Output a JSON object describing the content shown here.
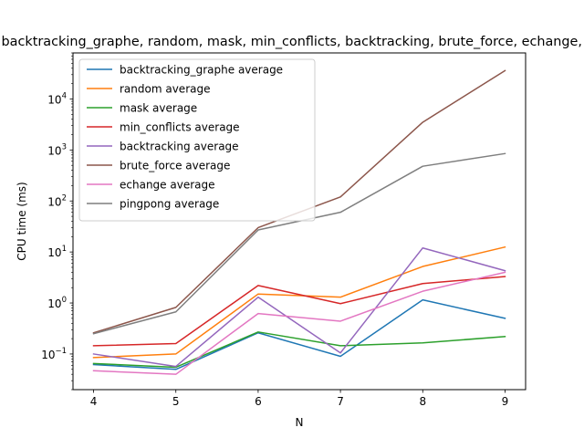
{
  "chart_data": {
    "type": "line",
    "title": "Timing of backtracking_graphe, random, mask, min_conflicts, backtracking, brute_force, echange, pingpong",
    "xlabel": "N",
    "ylabel": "CPU time (ms)",
    "yscale": "log",
    "x": [
      4,
      5,
      6,
      7,
      8,
      9
    ],
    "xlim": [
      3.75,
      9.25
    ],
    "ylim": [
      0.02,
      80000
    ],
    "x_ticks": [
      "4",
      "5",
      "6",
      "7",
      "8",
      "9"
    ],
    "y_ticks": [
      {
        "value": 0.1,
        "mantissa": "10",
        "exp": "−1"
      },
      {
        "value": 1,
        "mantissa": "10",
        "exp": "0"
      },
      {
        "value": 10,
        "mantissa": "10",
        "exp": "1"
      },
      {
        "value": 100,
        "mantissa": "10",
        "exp": "2"
      },
      {
        "value": 1000,
        "mantissa": "10",
        "exp": "3"
      },
      {
        "value": 10000,
        "mantissa": "10",
        "exp": "4"
      }
    ],
    "grid": false,
    "legend_position": "top-left",
    "series": [
      {
        "name": "backtracking_graphe average",
        "color": "#1f77b4",
        "values": [
          0.062,
          0.05,
          0.26,
          0.09,
          1.15,
          0.5
        ]
      },
      {
        "name": "random average",
        "color": "#ff7f0e",
        "values": [
          0.085,
          0.1,
          1.5,
          1.3,
          5.2,
          12.5
        ]
      },
      {
        "name": "mask average",
        "color": "#2ca02c",
        "values": [
          0.065,
          0.055,
          0.27,
          0.145,
          0.165,
          0.22
        ]
      },
      {
        "name": "min_conflicts average",
        "color": "#d62728",
        "values": [
          0.145,
          0.16,
          2.2,
          0.97,
          2.4,
          3.3
        ]
      },
      {
        "name": "backtracking average",
        "color": "#9467bd",
        "values": [
          0.1,
          0.057,
          1.3,
          0.105,
          12,
          4.3
        ]
      },
      {
        "name": "brute_force average",
        "color": "#8c564b",
        "values": [
          0.26,
          0.82,
          30,
          120,
          3500,
          36000
        ]
      },
      {
        "name": "echange average",
        "color": "#e377c2",
        "values": [
          0.047,
          0.04,
          0.62,
          0.44,
          1.7,
          4.0
        ]
      },
      {
        "name": "pingpong average",
        "color": "#7f7f7f",
        "values": [
          0.25,
          0.67,
          27,
          60,
          480,
          850
        ]
      }
    ]
  }
}
